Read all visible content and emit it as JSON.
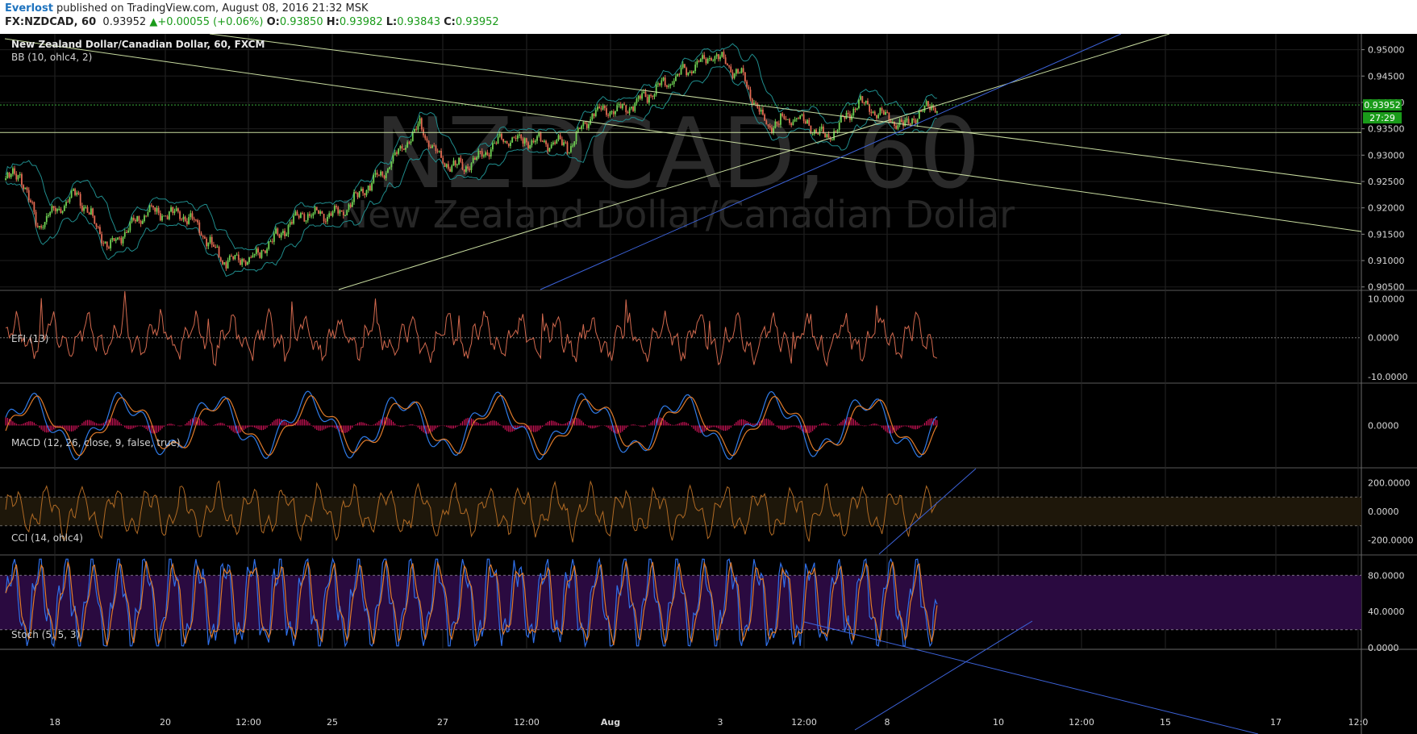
{
  "header": {
    "author": "Everlost",
    "published_text": " published on TradingView.com, August 08, 2016 21:32 MSK",
    "symbol": "FX:NZDCAD, 60",
    "last": "0.93952",
    "change": "+0.00055 (+0.06%)",
    "o_label": "O:",
    "o_value": "0.93850",
    "h_label": "H:",
    "h_value": "0.93982",
    "l_label": "L:",
    "l_value": "0.93843",
    "c_label": "C:",
    "c_value": "0.93952"
  },
  "chart_data": {
    "type": "candlestick",
    "watermark_symbol": "NZDCAD, 60",
    "watermark_name": "New Zealand Dollar/Canadian Dollar",
    "colors": {
      "up": "#6fd153",
      "down": "#e26a52",
      "bb": "#1f8c8c",
      "trendline": "#c8dca0",
      "blue_trendline": "#3c62d8",
      "efi": "#d2694e",
      "macd": "#2f7be8",
      "signal": "#e07b2a",
      "hist": "#d4145a",
      "cci": "#b06a24",
      "stoch_k": "#2f6fe8",
      "stoch_d": "#e07b2a",
      "stoch_band": "#2a0a40",
      "cci_band": "#1e170a",
      "price_tag": "#1a9b1a"
    },
    "x_ticks": [
      "18",
      "20",
      "12:00",
      "25",
      "27",
      "12:00",
      "Aug",
      "3",
      "12:00",
      "8",
      "10",
      "12:00",
      "15",
      "17",
      "12:0"
    ],
    "price": {
      "title": "New Zealand Dollar/Canadian Dollar, 60, FXCM",
      "indicator": "BB (10, ohlc4, 2)",
      "y_ticks": [
        "0.95000",
        "0.94500",
        "0.94000",
        "0.93500",
        "0.93000",
        "0.92500",
        "0.92000",
        "0.91500",
        "0.91000",
        "0.90500"
      ],
      "ylim": [
        0.9045,
        0.953
      ],
      "last_price": "0.93952",
      "countdown": "27:29",
      "horizontal_level": 0.9343,
      "anchors": [
        [
          0,
          0.9255
        ],
        [
          8,
          0.9265
        ],
        [
          18,
          0.9165
        ],
        [
          40,
          0.9228
        ],
        [
          58,
          0.9125
        ],
        [
          80,
          0.9195
        ],
        [
          104,
          0.9182
        ],
        [
          122,
          0.91
        ],
        [
          140,
          0.9105
        ],
        [
          165,
          0.9185
        ],
        [
          188,
          0.919
        ],
        [
          210,
          0.926
        ],
        [
          233,
          0.9355
        ],
        [
          245,
          0.929
        ],
        [
          258,
          0.9275
        ],
        [
          280,
          0.933
        ],
        [
          300,
          0.9325
        ],
        [
          318,
          0.932
        ],
        [
          330,
          0.938
        ],
        [
          350,
          0.939
        ],
        [
          368,
          0.9428
        ],
        [
          388,
          0.9472
        ],
        [
          398,
          0.949
        ],
        [
          415,
          0.9448
        ],
        [
          428,
          0.9355
        ],
        [
          445,
          0.9372
        ],
        [
          462,
          0.933
        ],
        [
          480,
          0.94
        ],
        [
          492,
          0.9378
        ],
        [
          505,
          0.9355
        ],
        [
          520,
          0.9395
        ]
      ]
    },
    "efi": {
      "label": "EFI (13)",
      "y_ticks": [
        "10.0000",
        "0.0000",
        "-10.0000"
      ],
      "ylim": [
        -11.5,
        12.0
      ]
    },
    "macd": {
      "label": "MACD (12, 26, close, 9, false, true)",
      "y_ticks": [
        "0.0000"
      ]
    },
    "cci": {
      "label": "CCI (14, ohlc4)",
      "y_ticks": [
        "200.0000",
        "0.0000",
        "-200.0000"
      ],
      "ylim": [
        -300,
        300
      ],
      "bands": [
        100,
        -100
      ]
    },
    "stoch": {
      "label": "Stoch (5, 5, 3)",
      "y_ticks": [
        "80.0000",
        "40.0000",
        "0.0000"
      ],
      "ylim": [
        0,
        100
      ],
      "bands": [
        80,
        20
      ]
    }
  }
}
